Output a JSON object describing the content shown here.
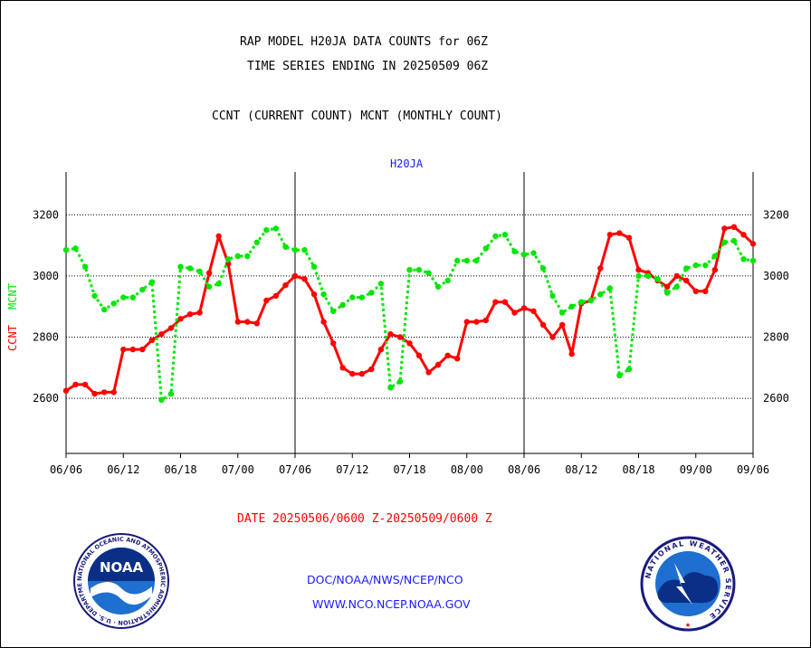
{
  "title_line1": "RAP MODEL H20JA DATA COUNTS for 06Z",
  "title_line2": "TIME SERIES ENDING IN 20250509 06Z",
  "subtitle": "CCNT (CURRENT COUNT) MCNT (MONTHLY COUNT)",
  "date_range": "DATE 20250506/0600 Z-20250509/0600 Z",
  "footer_link1": "DOC/NOAA/NWS/NCEP/NCO",
  "footer_link2": "WWW.NCO.NCEP.NOAA.GOV",
  "colors": {
    "ccnt": "#ff0000",
    "mcnt": "#00e600",
    "text_blue": "#1a1aff",
    "axis": "#000000"
  },
  "logos": {
    "noaa": {
      "icon": "noaa-logo",
      "label": "NOAA",
      "ring_text": "NATIONAL OCEANIC AND ATMOSPHERIC ADMINISTRATION · U.S. DEPARTMENT OF COMMERCE"
    },
    "nws": {
      "icon": "nws-logo",
      "ring_text": "NATIONAL WEATHER SERVICE"
    }
  },
  "chart_data": {
    "type": "line",
    "title": "H20JA",
    "ylabel_left_a": "CCNT",
    "ylabel_left_b": "MCNT",
    "ylim": [
      2420,
      3340
    ],
    "y_ticks": [
      2600,
      2800,
      3000,
      3200
    ],
    "x_tick_labels": [
      "06/06",
      "06/12",
      "06/18",
      "07/00",
      "07/06",
      "07/12",
      "07/18",
      "08/00",
      "08/06",
      "08/12",
      "08/18",
      "09/00",
      "09/06"
    ],
    "grid": "horizontal dotted",
    "series": [
      {
        "name": "CCNT",
        "color": "#ff0000",
        "values": [
          2625,
          2645,
          2645,
          2615,
          2620,
          2620,
          2760,
          2760,
          2760,
          2790,
          2810,
          2830,
          2860,
          2875,
          2880,
          3010,
          3130,
          3040,
          2850,
          2850,
          2845,
          2920,
          2935,
          2970,
          3000,
          2990,
          2940,
          2850,
          2780,
          2700,
          2680,
          2680,
          2695,
          2760,
          2810,
          2800,
          2780,
          2740,
          2685,
          2710,
          2740,
          2730,
          2850,
          2850,
          2855,
          2915,
          2915,
          2880,
          2895,
          2885,
          2840,
          2800,
          2840,
          2745,
          2910,
          2920,
          3025,
          3135,
          3140,
          3125,
          3020,
          3010,
          2985,
          2965,
          3000,
          2985,
          2950,
          2950,
          3020,
          3155,
          3160,
          3135,
          3105
        ]
      },
      {
        "name": "MCNT",
        "color": "#00e600",
        "values": [
          3085,
          3090,
          3030,
          2935,
          2890,
          2910,
          2930,
          2930,
          2955,
          2980,
          2595,
          2615,
          3030,
          3025,
          3015,
          2965,
          2975,
          3055,
          3065,
          3065,
          3110,
          3150,
          3155,
          3095,
          3085,
          3085,
          3030,
          2940,
          2885,
          2905,
          2930,
          2930,
          2945,
          2975,
          2635,
          2655,
          3020,
          3020,
          3010,
          2965,
          2985,
          3050,
          3050,
          3050,
          3090,
          3130,
          3135,
          3080,
          3070,
          3075,
          3025,
          2935,
          2880,
          2900,
          2915,
          2920,
          2940,
          2960,
          2675,
          2695,
          3000,
          3000,
          2990,
          2945,
          2965,
          3025,
          3035,
          3035,
          3065,
          3110,
          3115,
          3055,
          3050
        ]
      }
    ]
  }
}
